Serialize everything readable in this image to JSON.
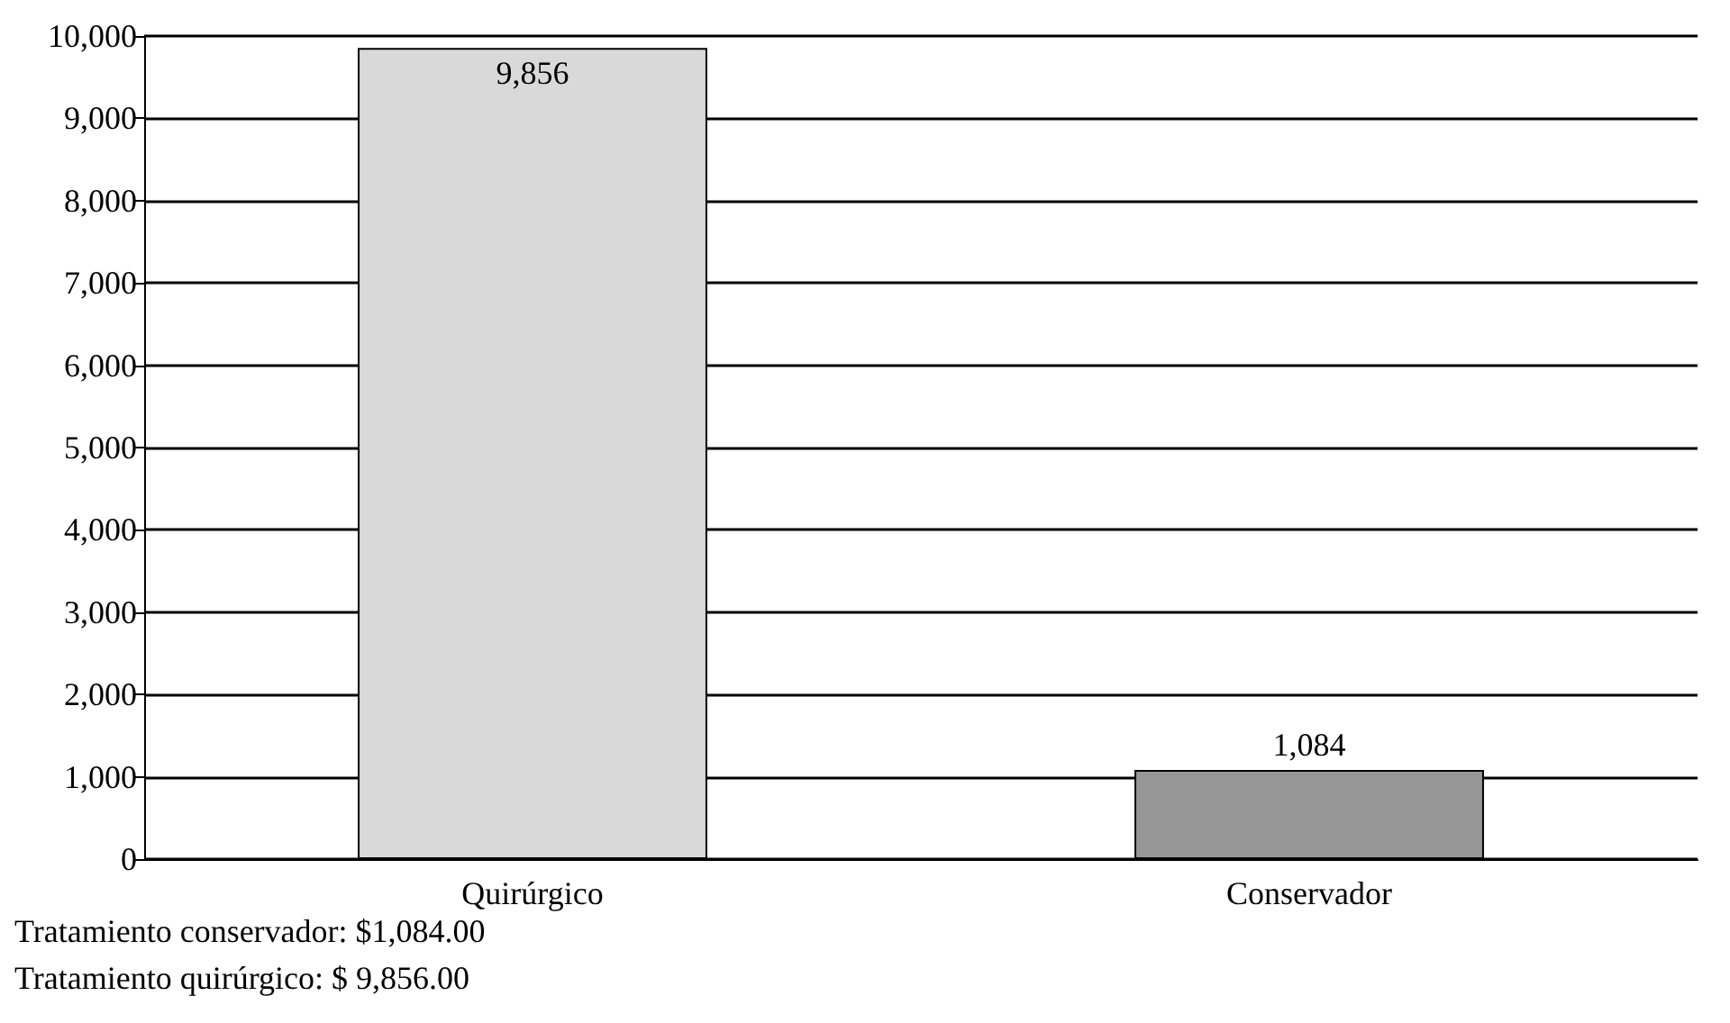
{
  "chart_data": {
    "type": "bar",
    "categories": [
      "Quirúrgico",
      "Conservador"
    ],
    "values": [
      9856,
      1084
    ],
    "colors": [
      "#d9d9d9",
      "#969696"
    ],
    "value_labels": [
      "9,856",
      "1,084"
    ],
    "ylim": [
      0,
      10000
    ],
    "yticks": [
      {
        "value": 0,
        "label": "0"
      },
      {
        "value": 1000,
        "label": "1,000"
      },
      {
        "value": 2000,
        "label": "2,000"
      },
      {
        "value": 3000,
        "label": "3,000"
      },
      {
        "value": 4000,
        "label": "4,000"
      },
      {
        "value": 5000,
        "label": "5,000"
      },
      {
        "value": 6000,
        "label": "6,000"
      },
      {
        "value": 7000,
        "label": "7,000"
      },
      {
        "value": 8000,
        "label": "8,000"
      },
      {
        "value": 9000,
        "label": "9,000"
      },
      {
        "value": 10000,
        "label": "10,000"
      }
    ],
    "grid": "y",
    "annotations": [
      "Tratamiento conservador: $1,084.00",
      "Tratamiento quirúrgico: $ 9,856.00"
    ]
  }
}
